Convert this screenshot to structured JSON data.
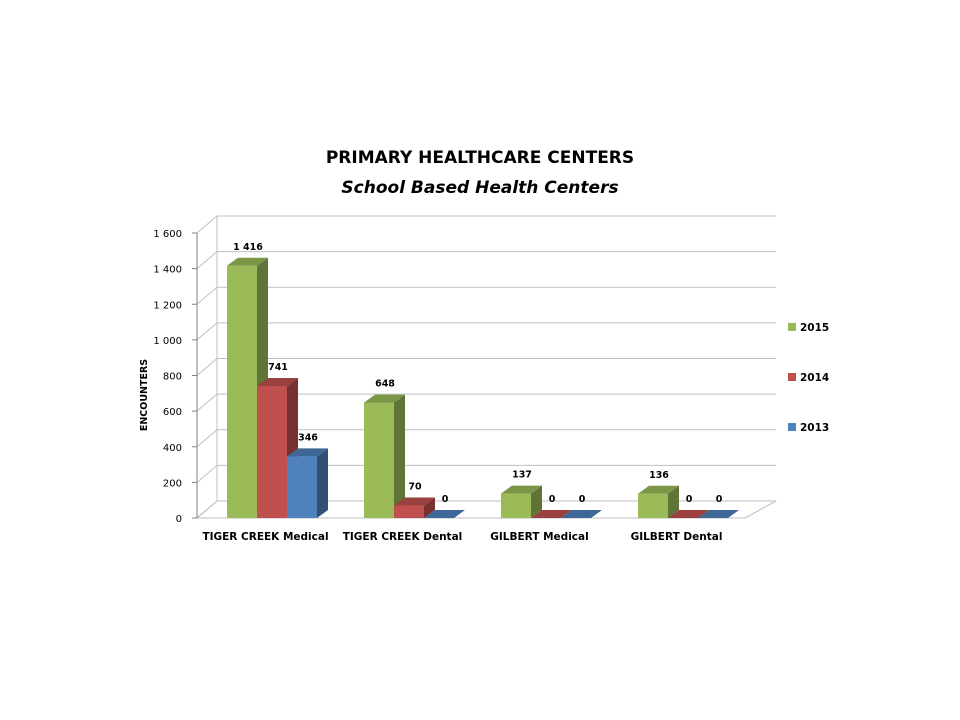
{
  "chart_data": {
    "type": "bar",
    "title": "PRIMARY HEALTHCARE CENTERS",
    "subtitle": "School Based Health Centers",
    "ylabel": "ENCOUNTERS",
    "xlabel": "",
    "ylim": [
      0,
      1600
    ],
    "yticks": [
      0,
      200,
      400,
      600,
      800,
      1000,
      1200,
      1400,
      1600
    ],
    "ytick_labels": [
      "0",
      "200",
      "400",
      "600",
      "800",
      "1 000",
      "1 200",
      "1 400",
      "1 600"
    ],
    "grid": true,
    "legend_position": "right",
    "categories": [
      "TIGER CREEK Medical",
      "TIGER CREEK Dental",
      "GILBERT Medical",
      "GILBERT Dental"
    ],
    "series": [
      {
        "name": "2015",
        "color": "#9bbb59",
        "values": [
          1416,
          648,
          137,
          136
        ],
        "labels": [
          "1 416",
          "648",
          "137",
          "136"
        ]
      },
      {
        "name": "2014",
        "color": "#c0504d",
        "values": [
          741,
          70,
          0,
          0
        ],
        "labels": [
          "741",
          "70",
          "0",
          "0"
        ]
      },
      {
        "name": "2013",
        "color": "#4f81bd",
        "values": [
          346,
          0,
          0,
          0
        ],
        "labels": [
          "346",
          "0",
          "0",
          "0"
        ]
      }
    ]
  }
}
